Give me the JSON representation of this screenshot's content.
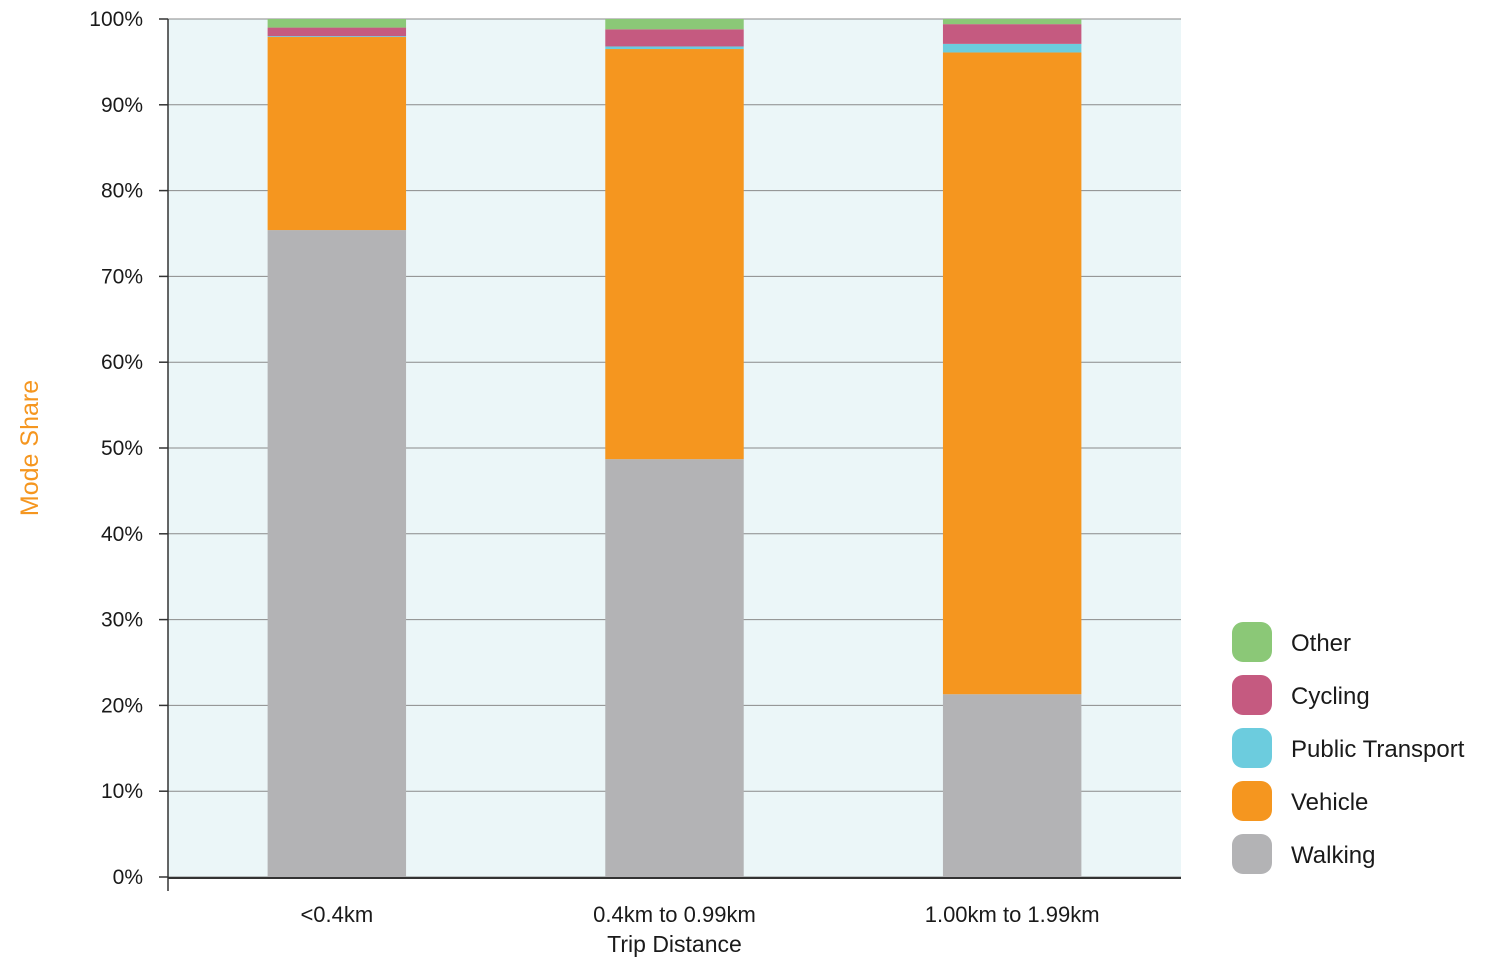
{
  "chart_data": {
    "type": "bar",
    "stacked": true,
    "categories": [
      "<0.4km",
      "0.4km to 0.99km",
      "1.00km to 1.99km"
    ],
    "series": [
      {
        "name": "Walking",
        "color": "#b3b3b5",
        "values": [
          75.4,
          48.7,
          21.3
        ]
      },
      {
        "name": "Vehicle",
        "color": "#f5961f",
        "values": [
          22.5,
          47.8,
          74.8
        ]
      },
      {
        "name": "Public Transport",
        "color": "#6cccde",
        "values": [
          0.1,
          0.3,
          1.0
        ]
      },
      {
        "name": "Cycling",
        "color": "#c55a80",
        "values": [
          1.0,
          2.0,
          2.3
        ]
      },
      {
        "name": "Other",
        "color": "#8bc877",
        "values": [
          1.0,
          1.2,
          0.6
        ]
      }
    ],
    "legend_order": [
      "Other",
      "Cycling",
      "Public Transport",
      "Vehicle",
      "Walking"
    ],
    "xlabel": "Trip Distance",
    "ylabel": "Mode Share",
    "ylabel_color": "#f5961f",
    "ylim": [
      0,
      100
    ],
    "yticks": [
      "0%",
      "10%",
      "20%",
      "30%",
      "40%",
      "50%",
      "60%",
      "70%",
      "80%",
      "90%",
      "100%"
    ],
    "grid": true,
    "plot_background": "#ebf6f8",
    "legend_position": "right-bottom"
  }
}
